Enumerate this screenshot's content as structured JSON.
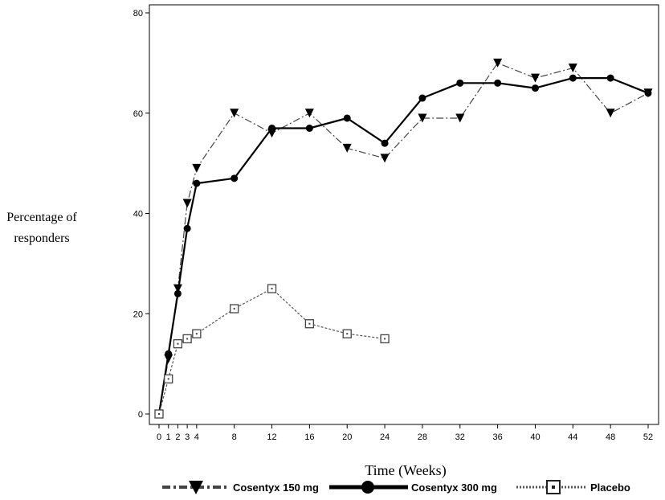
{
  "chart_data": {
    "type": "line",
    "title": "",
    "xlabel": "Time (Weeks)",
    "ylabel_lines": [
      "Percentage of",
      "responders"
    ],
    "x_ticks": [
      0,
      1,
      2,
      3,
      4,
      8,
      12,
      16,
      20,
      24,
      28,
      32,
      36,
      40,
      44,
      48,
      52
    ],
    "y_ticks": [
      0,
      20,
      40,
      60,
      80
    ],
    "xlim": [
      0,
      52.8
    ],
    "ylim": [
      -2,
      82
    ],
    "grid": false,
    "legend_position": "bottom",
    "series": [
      {
        "name": "Cosentyx 150 mg",
        "marker": "triangle-down",
        "line_style": "dash-dot",
        "color": "#000000",
        "x": [
          0,
          1,
          2,
          3,
          4,
          8,
          12,
          16,
          20,
          24,
          28,
          32,
          36,
          40,
          44,
          48,
          52
        ],
        "y": [
          0,
          11,
          25,
          42,
          49,
          60,
          56,
          60,
          53,
          51,
          59,
          59,
          70,
          67,
          69,
          60,
          64
        ]
      },
      {
        "name": "Cosentyx 300 mg",
        "marker": "circle",
        "line_style": "solid",
        "color": "#000000",
        "x": [
          0,
          1,
          2,
          3,
          4,
          8,
          12,
          16,
          20,
          24,
          28,
          32,
          36,
          40,
          44,
          48,
          52
        ],
        "y": [
          0,
          12,
          24,
          37,
          46,
          47,
          57,
          57,
          59,
          54,
          63,
          66,
          66,
          65,
          67,
          67,
          64
        ]
      },
      {
        "name": "Placebo",
        "marker": "square-open",
        "line_style": "dotted",
        "color": "#555555",
        "x": [
          0,
          1,
          2,
          3,
          4,
          8,
          12,
          16,
          20,
          24
        ],
        "y": [
          0,
          7,
          14,
          15,
          16,
          21,
          25,
          18,
          16,
          15
        ]
      }
    ]
  }
}
